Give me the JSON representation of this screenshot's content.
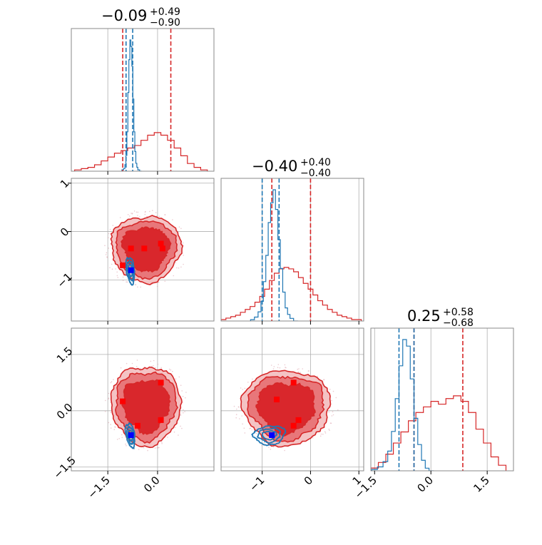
{
  "figure": {
    "type": "corner-plot",
    "n_params": 3
  },
  "colors": {
    "posterior_red": "#d62728",
    "red_fill_1": "#d9272c",
    "red_fill_2": "#e8777a",
    "red_fill_3": "#f4c3c4",
    "blue": "#1f77b4",
    "marker_red": "#ff0000",
    "marker_blue": "#0000ff",
    "grid": "#b0b0b0"
  },
  "titles": [
    {
      "median": "−0.09",
      "plus": "+0.49",
      "minus": "−0.90"
    },
    {
      "median": "−0.40",
      "plus": "+0.40",
      "minus": "−0.40"
    },
    {
      "median": "0.25",
      "plus": "+0.58",
      "minus": "−0.68"
    }
  ],
  "axes": {
    "p0": {
      "range": [
        -2.6,
        1.7
      ],
      "ticks": [
        -1.5,
        0.0
      ],
      "tick_labels": [
        "−1.5",
        "0.0"
      ]
    },
    "p1": {
      "range": [
        -1.85,
        1.1
      ],
      "ticks": [
        -1,
        0,
        1
      ],
      "tick_labels": [
        "−1",
        "0",
        "1"
      ]
    },
    "p2": {
      "range": [
        -1.6,
        2.2
      ],
      "ticks": [
        -1.5,
        0.0,
        1.5
      ],
      "tick_labels": [
        "−1.5",
        "0.0",
        "1.5"
      ]
    }
  },
  "chart_data": {
    "type": "corner",
    "parameters": 3,
    "quantile_lines": {
      "red": [
        [
          -1.05,
          0.4
        ],
        [
          -0.8,
          0.0
        ],
        [
          -0.45,
          0.85
        ]
      ],
      "blue": [
        [
          -0.95,
          -0.75
        ],
        [
          -1.0,
          -0.65
        ],
        [
          -0.85,
          -0.45
        ]
      ]
    },
    "hist_red": [
      {
        "centers": [
          -2.4,
          -2.2,
          -2.0,
          -1.8,
          -1.6,
          -1.4,
          -1.2,
          -1.0,
          -0.8,
          -0.6,
          -0.4,
          -0.2,
          0.0,
          0.2,
          0.4,
          0.6,
          0.8,
          1.0,
          1.2,
          1.4
        ],
        "values": [
          0.01,
          0.02,
          0.03,
          0.05,
          0.08,
          0.11,
          0.14,
          0.16,
          0.18,
          0.2,
          0.24,
          0.28,
          0.3,
          0.28,
          0.24,
          0.18,
          0.12,
          0.06,
          0.03,
          0.01
        ]
      },
      {
        "centers": [
          -1.8,
          -1.7,
          -1.6,
          -1.5,
          -1.4,
          -1.3,
          -1.2,
          -1.1,
          -1.0,
          -0.9,
          -0.8,
          -0.7,
          -0.6,
          -0.5,
          -0.4,
          -0.3,
          -0.2,
          -0.1,
          0.0,
          0.1,
          0.2,
          0.3,
          0.4,
          0.5,
          0.6,
          0.7,
          0.8,
          0.9,
          1.0
        ],
        "values": [
          0.01,
          0.02,
          0.03,
          0.04,
          0.06,
          0.08,
          0.1,
          0.13,
          0.17,
          0.22,
          0.28,
          0.33,
          0.36,
          0.37,
          0.36,
          0.34,
          0.3,
          0.26,
          0.22,
          0.18,
          0.14,
          0.11,
          0.08,
          0.06,
          0.04,
          0.03,
          0.02,
          0.01,
          0.01
        ]
      },
      {
        "centers": [
          -1.5,
          -1.3,
          -1.1,
          -0.9,
          -0.7,
          -0.5,
          -0.3,
          -0.1,
          0.1,
          0.3,
          0.5,
          0.7,
          0.9,
          1.1,
          1.3,
          1.5,
          1.7,
          1.9
        ],
        "values": [
          0.01,
          0.03,
          0.06,
          0.1,
          0.14,
          0.18,
          0.21,
          0.23,
          0.25,
          0.24,
          0.26,
          0.27,
          0.25,
          0.21,
          0.15,
          0.1,
          0.05,
          0.02
        ]
      }
    ],
    "hist_blue": [
      {
        "centers": [
          -1.05,
          -1.0,
          -0.97,
          -0.94,
          -0.91,
          -0.88,
          -0.85,
          -0.82,
          -0.79,
          -0.76,
          -0.73,
          -0.7,
          -0.67,
          -0.64,
          -0.61,
          -0.58,
          -0.5
        ],
        "values": [
          0.01,
          0.02,
          0.05,
          0.12,
          0.3,
          0.6,
          0.85,
          1.0,
          0.95,
          0.8,
          0.55,
          0.3,
          0.15,
          0.06,
          0.03,
          0.01,
          0.0
        ]
      },
      {
        "centers": [
          -1.2,
          -1.12,
          -1.05,
          -1.0,
          -0.95,
          -0.9,
          -0.85,
          -0.8,
          -0.75,
          -0.7,
          -0.65,
          -0.6,
          -0.55,
          -0.5,
          -0.45,
          -0.4,
          -0.3
        ],
        "values": [
          0.01,
          0.03,
          0.07,
          0.15,
          0.3,
          0.5,
          0.75,
          0.9,
          1.0,
          0.85,
          0.62,
          0.4,
          0.22,
          0.1,
          0.05,
          0.02,
          0.0
        ]
      },
      {
        "centers": [
          -1.5,
          -1.35,
          -1.2,
          -1.1,
          -1.0,
          -0.9,
          -0.8,
          -0.7,
          -0.6,
          -0.5,
          -0.4,
          -0.3,
          -0.2,
          -0.1,
          0.0
        ],
        "values": [
          0.01,
          0.03,
          0.07,
          0.15,
          0.3,
          0.55,
          0.8,
          1.0,
          0.95,
          0.7,
          0.4,
          0.2,
          0.08,
          0.02,
          0.0
        ]
      }
    ],
    "joint_2d": [
      {
        "panel": "p1_vs_p0",
        "red_markers": [
          [
            -1.05,
            -0.7
          ],
          [
            -0.8,
            -0.35
          ],
          [
            -0.4,
            -0.35
          ],
          [
            0.1,
            -0.25
          ],
          [
            0.15,
            -0.35
          ]
        ],
        "blue_marker": [
          -0.8,
          -0.8
        ]
      },
      {
        "panel": "p2_vs_p0",
        "red_markers": [
          [
            -1.05,
            0.25
          ],
          [
            0.1,
            0.75
          ],
          [
            0.1,
            -0.25
          ],
          [
            -0.6,
            -0.4
          ]
        ],
        "blue_marker": [
          -0.8,
          -0.65
        ]
      },
      {
        "panel": "p2_vs_p1",
        "red_markers": [
          [
            -0.7,
            0.3
          ],
          [
            -0.35,
            0.75
          ],
          [
            -0.25,
            -0.25
          ],
          [
            -0.35,
            -0.4
          ]
        ],
        "blue_marker": [
          -0.8,
          -0.65
        ]
      }
    ]
  }
}
